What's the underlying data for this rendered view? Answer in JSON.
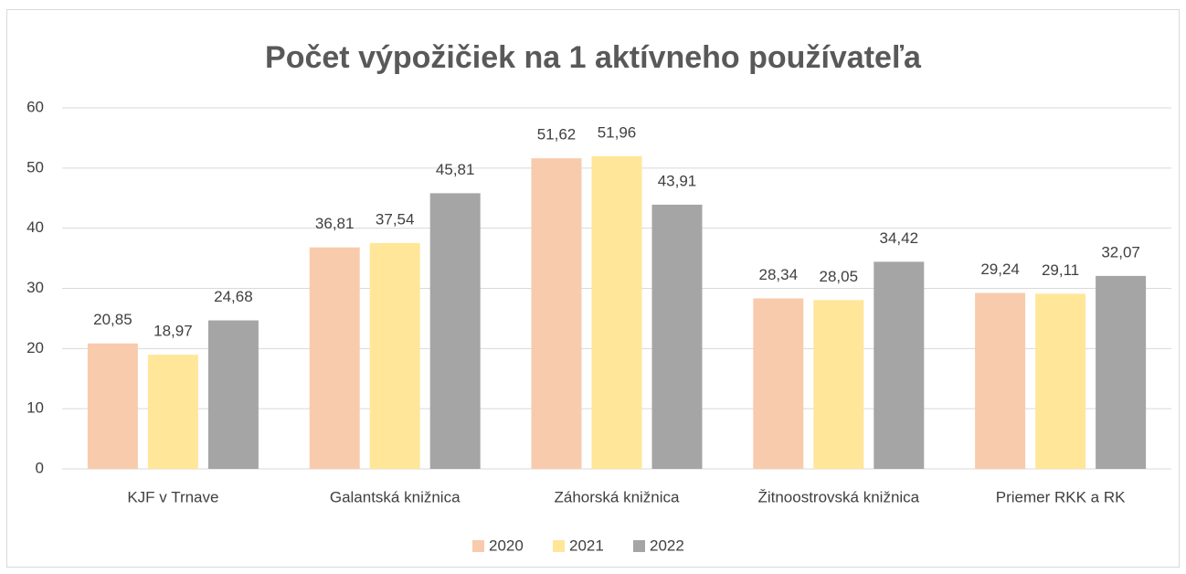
{
  "chart_data": {
    "type": "bar",
    "title": "Počet výpožičiek na 1 aktívneho používateľa",
    "categories": [
      "KJF v Trnave",
      "Galantská knižnica",
      "Záhorská knižnica",
      "Žitnoostrovská knižnica",
      "Priemer RKK a RK"
    ],
    "series": [
      {
        "name": "2020",
        "color": "#f8cbad",
        "values": [
          20.85,
          36.81,
          51.62,
          28.34,
          29.24
        ],
        "value_labels": [
          "20,85",
          "36,81",
          "51,62",
          "28,34",
          "29,24"
        ]
      },
      {
        "name": "2021",
        "color": "#ffe699",
        "values": [
          18.97,
          37.54,
          51.96,
          28.05,
          29.11
        ],
        "value_labels": [
          "18,97",
          "37,54",
          "51,96",
          "28,05",
          "29,11"
        ]
      },
      {
        "name": "2022",
        "color": "#a5a5a5",
        "values": [
          24.68,
          45.81,
          43.91,
          34.42,
          32.07
        ],
        "value_labels": [
          "24,68",
          "45,81",
          "43,91",
          "34,42",
          "32,07"
        ]
      }
    ],
    "ylim": [
      0,
      60
    ],
    "yticks": [
      0,
      10,
      20,
      30,
      40,
      50,
      60
    ],
    "grid": true,
    "legend": "bottom"
  }
}
